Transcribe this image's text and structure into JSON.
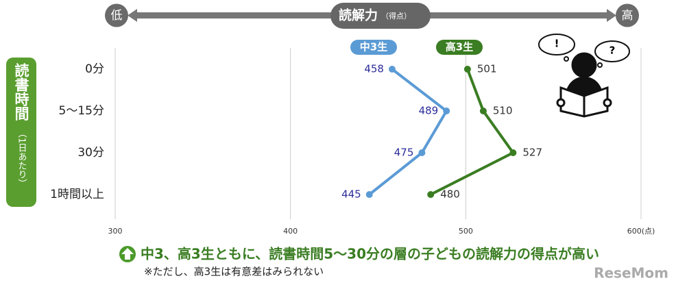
{
  "header": {
    "low": "低",
    "high": "高",
    "title": "読解力",
    "title_unit": "（得点）"
  },
  "y_label": {
    "main": "読書時間",
    "sub": "（1日あたり）"
  },
  "chart_data": {
    "type": "line",
    "orientation": "horizontal",
    "categories": [
      "0分",
      "5〜15分",
      "30分",
      "1時間以上"
    ],
    "series": [
      {
        "name": "中3生",
        "color": "#5b9bd5",
        "values": [
          458,
          489,
          475,
          445
        ]
      },
      {
        "name": "高3生",
        "color": "#3a7d22",
        "values": [
          501,
          510,
          527,
          480
        ]
      }
    ],
    "xlim": [
      300,
      600
    ],
    "xticks": [
      300,
      400,
      500,
      {
        "value": 600,
        "label": "600(点)"
      }
    ],
    "grid": true
  },
  "footer": {
    "headline": "中3、高3生ともに、読書時間5～30分の層の子どもの読解力の得点が高い",
    "note": "※ただし、高3生は有意差はみられない"
  },
  "icon": {
    "bubble_left": "!",
    "bubble_right": "?"
  },
  "watermark": "ReseMom"
}
